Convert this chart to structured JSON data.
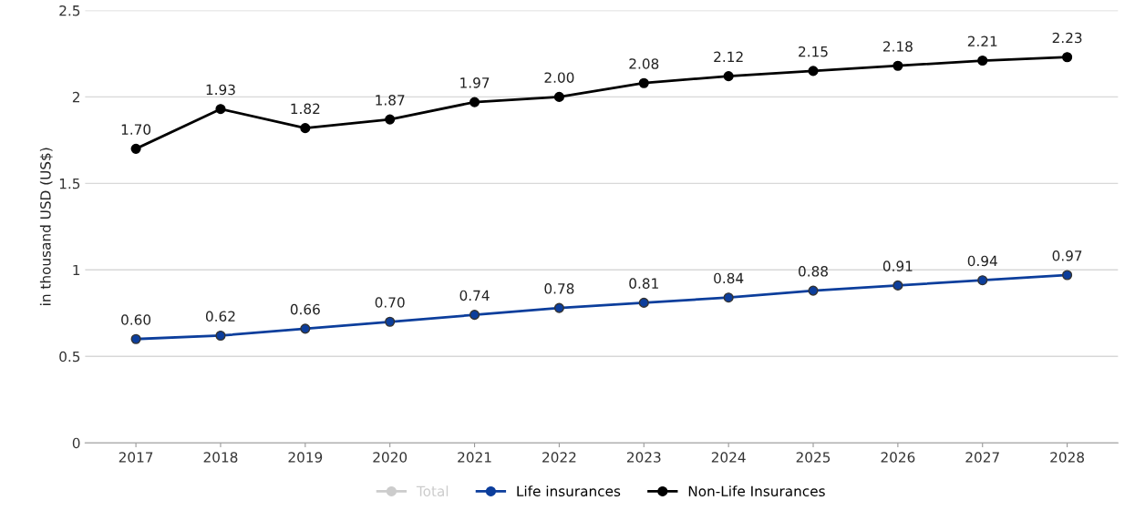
{
  "chart_data": {
    "type": "line",
    "ylabel": "in thousand USD (US$)",
    "categories": [
      "2017",
      "2018",
      "2019",
      "2020",
      "2021",
      "2022",
      "2023",
      "2024",
      "2025",
      "2026",
      "2027",
      "2028"
    ],
    "series": [
      {
        "name": "Total",
        "color": "#cccccc",
        "values": [
          null,
          null,
          null,
          null,
          null,
          null,
          null,
          null,
          null,
          null,
          null,
          null
        ]
      },
      {
        "name": "Life insurances",
        "color": "#0c3e9c",
        "values": [
          0.6,
          0.62,
          0.66,
          0.7,
          0.74,
          0.78,
          0.81,
          0.84,
          0.88,
          0.91,
          0.94,
          0.97
        ],
        "value_labels": [
          "0.60",
          "0.62",
          "0.66",
          "0.70",
          "0.74",
          "0.78",
          "0.81",
          "0.84",
          "0.88",
          "0.91",
          "0.94",
          "0.97"
        ]
      },
      {
        "name": "Non-Life Insurances",
        "color": "#000000",
        "values": [
          1.7,
          1.93,
          1.82,
          1.87,
          1.97,
          2.0,
          2.08,
          2.12,
          2.15,
          2.18,
          2.21,
          2.23
        ],
        "value_labels": [
          "1.70",
          "1.93",
          "1.82",
          "1.87",
          "1.97",
          "2.00",
          "2.08",
          "2.12",
          "2.15",
          "2.18",
          "2.21",
          "2.23"
        ]
      }
    ],
    "ylim": [
      0,
      2.5
    ],
    "yticks": [
      {
        "value": 0,
        "label": "0"
      },
      {
        "value": 0.5,
        "label": "0.5"
      },
      {
        "value": 1,
        "label": "1"
      },
      {
        "value": 1.5,
        "label": "1.5"
      },
      {
        "value": 2,
        "label": "2"
      },
      {
        "value": 2.5,
        "label": "2.5"
      }
    ],
    "grid": "y",
    "legend": "bottom",
    "marker": "circle",
    "line_style": "solid"
  }
}
